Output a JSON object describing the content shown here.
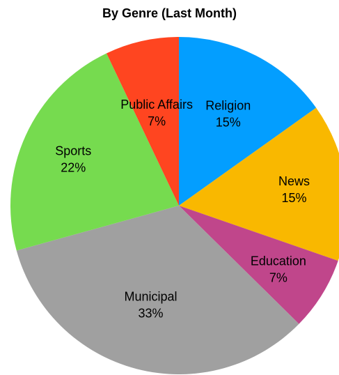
{
  "chart_data": {
    "type": "pie",
    "title": "By Genre (Last Month)",
    "slices": [
      {
        "label": "Religion",
        "percent_label": "15%",
        "value": 15,
        "color": "#039EFF"
      },
      {
        "label": "News",
        "percent_label": "15%",
        "value": 15,
        "color": "#F9B800"
      },
      {
        "label": "Education",
        "percent_label": "7%",
        "value": 7,
        "color": "#C0468B"
      },
      {
        "label": "Municipal",
        "percent_label": "33%",
        "value": 33,
        "color": "#A0A0A0"
      },
      {
        "label": "Sports",
        "percent_label": "22%",
        "value": 22,
        "color": "#76DB4F"
      },
      {
        "label": "Public Affairs",
        "percent_label": "7%",
        "value": 7,
        "color": "#FF4520"
      }
    ],
    "start_direction": "top",
    "order": "clockwise",
    "legend": "none"
  }
}
